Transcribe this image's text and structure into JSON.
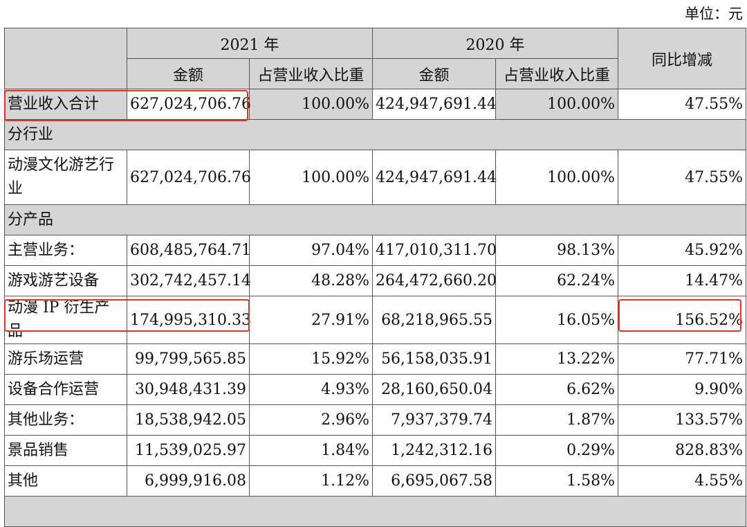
{
  "unit_label": "单位：元",
  "header": {
    "year_2021": "2021 年",
    "year_2020": "2020 年",
    "amount": "金额",
    "share": "占营业收入比重",
    "yoy": "同比增减"
  },
  "total": {
    "label": "营业收入合计",
    "a21": "627,024,706.76",
    "p21": "100.00%",
    "a20": "424,947,691.44",
    "p20": "100.00%",
    "yoy": "47.55%"
  },
  "section_industry": "分行业",
  "industry_rows": [
    {
      "label": "动漫文化游艺行业",
      "a21": "627,024,706.76",
      "p21": "100.00%",
      "a20": "424,947,691.44",
      "p20": "100.00%",
      "yoy": "47.55%"
    }
  ],
  "section_product": "分产品",
  "product_rows": [
    {
      "label": "主营业务：",
      "a21": "608,485,764.71",
      "p21": "97.04%",
      "a20": "417,010,311.70",
      "p20": "98.13%",
      "yoy": "45.92%"
    },
    {
      "label": "游戏游艺设备",
      "a21": "302,742,457.14",
      "p21": "48.28%",
      "a20": "264,472,660.20",
      "p20": "62.24%",
      "yoy": "14.47%"
    },
    {
      "label": "动漫 IP 衍生产品",
      "a21": "174,995,310.33",
      "p21": "27.91%",
      "a20": "68,218,965.55",
      "p20": "16.05%",
      "yoy": "156.52%"
    },
    {
      "label": "游乐场运营",
      "a21": "99,799,565.85",
      "p21": "15.92%",
      "a20": "56,158,035.91",
      "p20": "13.22%",
      "yoy": "77.71%"
    },
    {
      "label": "设备合作运营",
      "a21": "30,948,431.39",
      "p21": "4.93%",
      "a20": "28,160,650.04",
      "p20": "6.62%",
      "yoy": "9.90%"
    },
    {
      "label": "其他业务：",
      "a21": "18,538,942.05",
      "p21": "2.96%",
      "a20": "7,937,379.74",
      "p20": "1.87%",
      "yoy": "133.57%"
    },
    {
      "label": "景品销售",
      "a21": "11,539,025.97",
      "p21": "1.84%",
      "a20": "1,242,312.16",
      "p20": "0.29%",
      "yoy": "828.83%"
    },
    {
      "label": "其他",
      "a21": "6,999,916.08",
      "p21": "1.12%",
      "a20": "6,695,067.58",
      "p20": "1.58%",
      "yoy": "4.55%"
    }
  ],
  "highlight_color": "#e8321e"
}
